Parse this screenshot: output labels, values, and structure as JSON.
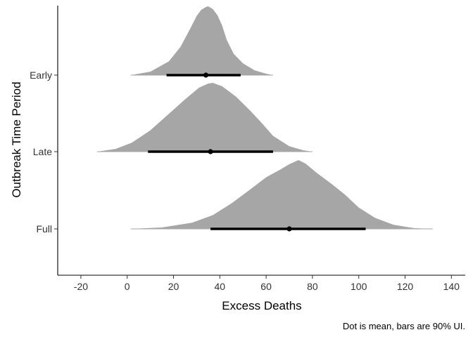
{
  "chart_data": {
    "type": "density-interval",
    "title": "",
    "xlabel": "Excess Deaths",
    "ylabel": "Outbreak Time Period",
    "caption": "Dot is mean, bars are 90% UI.",
    "xlim": [
      -30,
      146
    ],
    "xticks": [
      -20,
      0,
      20,
      40,
      60,
      80,
      100,
      120,
      140
    ],
    "xtick_labels": [
      "-20",
      "0",
      "20",
      "40",
      "60",
      "80",
      "100",
      "120",
      "140"
    ],
    "categories": [
      "Early",
      "Late",
      "Full"
    ],
    "grid": false,
    "colors": {
      "density_fill": "#a6a6a6",
      "interval": "#000000",
      "axis": "#000000"
    },
    "series": [
      {
        "category": "Early",
        "mean": 34,
        "ui90": [
          17,
          49
        ],
        "density": [
          [
            1.5,
            0.0
          ],
          [
            10,
            0.05
          ],
          [
            18,
            0.2
          ],
          [
            23,
            0.41
          ],
          [
            27,
            0.66
          ],
          [
            30,
            0.86
          ],
          [
            32,
            0.95
          ],
          [
            34,
            0.99
          ],
          [
            35,
            1.0
          ],
          [
            37,
            0.96
          ],
          [
            39,
            0.87
          ],
          [
            41,
            0.72
          ],
          [
            43,
            0.51
          ],
          [
            46,
            0.31
          ],
          [
            50,
            0.17
          ],
          [
            55,
            0.07
          ],
          [
            60,
            0.02
          ],
          [
            63,
            0.0
          ]
        ]
      },
      {
        "category": "Late",
        "mean": 36,
        "ui90": [
          9,
          63
        ],
        "density": [
          [
            -13,
            0.0
          ],
          [
            -5,
            0.04
          ],
          [
            2,
            0.13
          ],
          [
            10,
            0.31
          ],
          [
            18,
            0.55
          ],
          [
            25,
            0.76
          ],
          [
            31,
            0.93
          ],
          [
            35,
            0.99
          ],
          [
            37,
            1.0
          ],
          [
            41,
            0.95
          ],
          [
            47,
            0.8
          ],
          [
            53,
            0.6
          ],
          [
            58,
            0.42
          ],
          [
            63,
            0.23
          ],
          [
            70,
            0.08
          ],
          [
            76,
            0.02
          ],
          [
            80,
            0.0
          ]
        ]
      },
      {
        "category": "Full",
        "mean": 70,
        "ui90": [
          36,
          103
        ],
        "density": [
          [
            1.5,
            0.0
          ],
          [
            15,
            0.02
          ],
          [
            28,
            0.09
          ],
          [
            37,
            0.2
          ],
          [
            45,
            0.37
          ],
          [
            53,
            0.57
          ],
          [
            60,
            0.75
          ],
          [
            66,
            0.86
          ],
          [
            70,
            0.94
          ],
          [
            74,
            1.0
          ],
          [
            77,
            0.95
          ],
          [
            82,
            0.81
          ],
          [
            88,
            0.66
          ],
          [
            94,
            0.5
          ],
          [
            100,
            0.31
          ],
          [
            107,
            0.16
          ],
          [
            115,
            0.06
          ],
          [
            124,
            0.01
          ],
          [
            132,
            0.0
          ]
        ]
      }
    ]
  }
}
